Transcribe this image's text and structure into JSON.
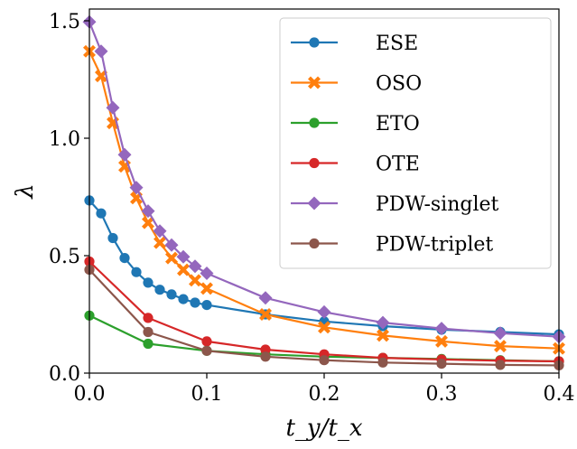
{
  "chart_data": {
    "type": "line",
    "title": "",
    "xlabel": "t_y/t_x",
    "ylabel": "λ",
    "xlim": [
      0.0,
      0.4
    ],
    "ylim": [
      0.0,
      1.55
    ],
    "xticks": [
      0.0,
      0.1,
      0.2,
      0.3,
      0.4
    ],
    "xtick_labels": [
      "0.0",
      "0.1",
      "0.2",
      "0.3",
      "0.4"
    ],
    "yticks": [
      0.0,
      0.5,
      1.0,
      1.5
    ],
    "ytick_labels": [
      "0.0",
      "0.5",
      "1.0",
      "1.5"
    ],
    "grid": false,
    "legend_position": "top-right",
    "series": [
      {
        "name": "ESE",
        "color": "#1f77b4",
        "marker": "circle",
        "x": [
          0.0,
          0.01,
          0.02,
          0.03,
          0.04,
          0.05,
          0.06,
          0.07,
          0.08,
          0.09,
          0.1,
          0.15,
          0.2,
          0.25,
          0.3,
          0.35,
          0.4
        ],
        "y": [
          0.735,
          0.68,
          0.575,
          0.49,
          0.43,
          0.385,
          0.355,
          0.335,
          0.315,
          0.3,
          0.29,
          0.25,
          0.22,
          0.2,
          0.185,
          0.175,
          0.165
        ]
      },
      {
        "name": "OSO",
        "color": "#ff7f0e",
        "marker": "x",
        "x": [
          0.0,
          0.01,
          0.02,
          0.03,
          0.04,
          0.05,
          0.06,
          0.07,
          0.08,
          0.09,
          0.1,
          0.15,
          0.2,
          0.25,
          0.3,
          0.35,
          0.4
        ],
        "y": [
          1.37,
          1.265,
          1.065,
          0.88,
          0.745,
          0.64,
          0.555,
          0.49,
          0.44,
          0.395,
          0.36,
          0.25,
          0.195,
          0.16,
          0.135,
          0.115,
          0.105
        ]
      },
      {
        "name": "ETO",
        "color": "#2ca02c",
        "marker": "circle",
        "x": [
          0.0,
          0.05,
          0.1,
          0.15,
          0.2,
          0.25,
          0.3,
          0.35,
          0.4
        ],
        "y": [
          0.245,
          0.125,
          0.095,
          0.08,
          0.07,
          0.065,
          0.06,
          0.055,
          0.05
        ]
      },
      {
        "name": "OTE",
        "color": "#d62728",
        "marker": "circle",
        "x": [
          0.0,
          0.05,
          0.1,
          0.15,
          0.2,
          0.25,
          0.3,
          0.35,
          0.4
        ],
        "y": [
          0.475,
          0.235,
          0.135,
          0.1,
          0.08,
          0.065,
          0.058,
          0.053,
          0.05
        ]
      },
      {
        "name": "PDW-singlet",
        "color": "#9467bd",
        "marker": "diamond",
        "x": [
          0.0,
          0.01,
          0.02,
          0.03,
          0.04,
          0.05,
          0.06,
          0.07,
          0.08,
          0.09,
          0.1,
          0.15,
          0.2,
          0.25,
          0.3,
          0.35,
          0.4
        ],
        "y": [
          1.495,
          1.37,
          1.13,
          0.93,
          0.79,
          0.69,
          0.605,
          0.545,
          0.495,
          0.455,
          0.425,
          0.32,
          0.26,
          0.215,
          0.19,
          0.17,
          0.155
        ]
      },
      {
        "name": "PDW-triplet",
        "color": "#8c564b",
        "marker": "circle",
        "x": [
          0.0,
          0.05,
          0.1,
          0.15,
          0.2,
          0.25,
          0.3,
          0.35,
          0.4
        ],
        "y": [
          0.44,
          0.175,
          0.095,
          0.07,
          0.055,
          0.045,
          0.04,
          0.035,
          0.033
        ]
      }
    ]
  }
}
